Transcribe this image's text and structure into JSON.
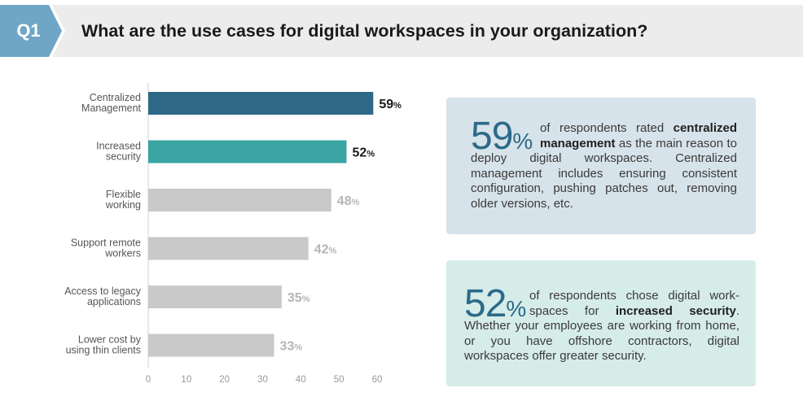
{
  "header": {
    "tag": "Q1",
    "question": "What are the use cases for digital workspaces in your organization?",
    "tag_color": "#6fa6c6"
  },
  "chart_data": {
    "type": "bar",
    "orientation": "horizontal",
    "categories": [
      [
        "Centralized",
        "Management"
      ],
      [
        "Increased",
        "security"
      ],
      [
        "Flexible",
        "working"
      ],
      [
        "Support remote",
        "workers"
      ],
      [
        "Access to legacy",
        "applications"
      ],
      [
        "Lower cost by",
        "using thin clients"
      ]
    ],
    "values": [
      59,
      52,
      48,
      42,
      35,
      33
    ],
    "value_labels": [
      "59",
      "52",
      "48",
      "42",
      "35",
      "33"
    ],
    "value_suffix": "%",
    "xlim": [
      0,
      60
    ],
    "xticks": [
      "0",
      "10",
      "20",
      "30",
      "40",
      "50",
      "60"
    ],
    "bar_colors": [
      "#2d6987",
      "#3aa5a2",
      "#c9c9c9",
      "#c9c9c9",
      "#c9c9c9",
      "#c9c9c9"
    ],
    "label_colors": [
      "#1a1a1a",
      "#1a1a1a",
      "#b5b5b5",
      "#b5b5b5",
      "#b5b5b5",
      "#b5b5b5"
    ],
    "grid": false
  },
  "callouts": [
    {
      "big": "59",
      "pct": "%",
      "pre": "of respondents rated ",
      "bold": "centralized management",
      "post": " as the main reason to deploy digital workspaces. Centralized management includes ensuring consistent configuration, pushing patches out, removing older versions, etc.",
      "bg": "#d7e3ea"
    },
    {
      "big": "52",
      "pct": "%",
      "pre": "of respondents chose digital work-spaces for ",
      "bold": "increased security",
      "post": ". Whether your employees are working from home, or you have offshore contractors, digital workspaces offer greater security.",
      "bg": "#d6ece9"
    }
  ]
}
